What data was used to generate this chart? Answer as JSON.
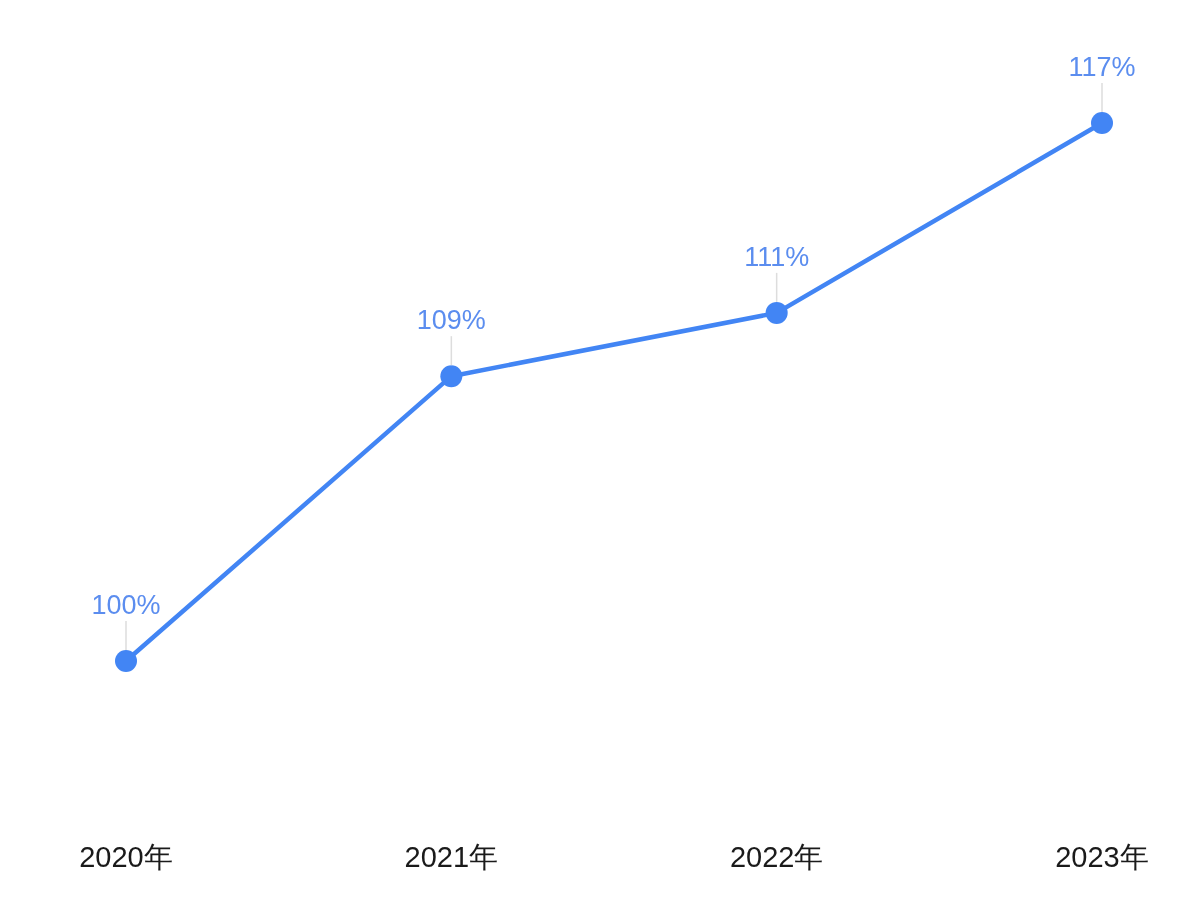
{
  "chart_data": {
    "type": "line",
    "categories": [
      "2020年",
      "2021年",
      "2022年",
      "2023年"
    ],
    "series": [
      {
        "color": "#4285f4",
        "values": [
          100,
          109,
          111,
          117
        ],
        "value_labels": [
          "100%",
          "109%",
          "111%",
          "117%"
        ]
      }
    ],
    "marker": "circle",
    "line_style": "solid"
  }
}
